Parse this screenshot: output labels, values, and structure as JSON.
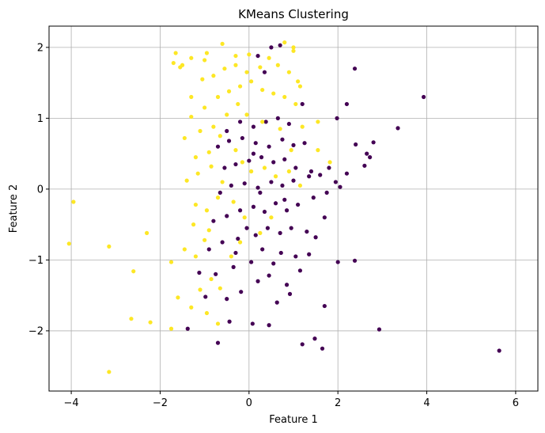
{
  "chart_data": {
    "type": "scatter",
    "title": "KMeans Clustering",
    "xlabel": "Feature 1",
    "ylabel": "Feature 2",
    "xlim": [
      -4.5,
      6.5
    ],
    "ylim": [
      -2.85,
      2.3
    ],
    "xticks": [
      -4,
      -2,
      0,
      2,
      4,
      6
    ],
    "yticks": [
      -2,
      -1,
      0,
      1,
      2
    ],
    "xtick_labels": [
      "−4",
      "−2",
      "0",
      "2",
      "4",
      "6"
    ],
    "ytick_labels": [
      "−2",
      "−1",
      "0",
      "1",
      "2"
    ],
    "grid": true,
    "colors": {
      "cluster_0": "#440154",
      "cluster_1": "#fde725",
      "grid": "#b0b0b0"
    },
    "series": [
      {
        "cluster": 0,
        "points": [
          [
            -0.7,
            -2.17
          ],
          [
            -1.38,
            -1.97
          ],
          [
            -0.44,
            -1.87
          ],
          [
            0.08,
            -1.9
          ],
          [
            0.45,
            -1.92
          ],
          [
            0.63,
            -1.6
          ],
          [
            1.2,
            -2.19
          ],
          [
            1.48,
            -2.11
          ],
          [
            1.65,
            -2.25
          ],
          [
            2.93,
            -1.98
          ],
          [
            5.63,
            -2.28
          ],
          [
            -0.98,
            -1.52
          ],
          [
            -0.5,
            -1.55
          ],
          [
            -0.18,
            -1.45
          ],
          [
            0.2,
            -1.3
          ],
          [
            0.45,
            -1.22
          ],
          [
            0.85,
            -1.35
          ],
          [
            1.15,
            -1.15
          ],
          [
            1.7,
            -1.65
          ],
          [
            0.92,
            -1.48
          ],
          [
            -1.12,
            -1.18
          ],
          [
            -0.75,
            -1.2
          ],
          [
            -0.35,
            -1.1
          ],
          [
            0.05,
            -1.03
          ],
          [
            0.3,
            -0.85
          ],
          [
            0.55,
            -1.05
          ],
          [
            0.72,
            -0.9
          ],
          [
            1.05,
            -0.95
          ],
          [
            1.35,
            -0.92
          ],
          [
            2.0,
            -1.03
          ],
          [
            2.38,
            -1.01
          ],
          [
            -0.9,
            -0.85
          ],
          [
            -0.6,
            -0.75
          ],
          [
            -0.25,
            -0.7
          ],
          [
            0.15,
            -0.65
          ],
          [
            0.42,
            -0.55
          ],
          [
            0.7,
            -0.62
          ],
          [
            0.95,
            -0.55
          ],
          [
            1.3,
            -0.6
          ],
          [
            1.5,
            -0.68
          ],
          [
            1.7,
            -0.4
          ],
          [
            -0.8,
            -0.45
          ],
          [
            -0.5,
            -0.38
          ],
          [
            -0.2,
            -0.3
          ],
          [
            0.1,
            -0.25
          ],
          [
            0.35,
            -0.32
          ],
          [
            0.6,
            -0.2
          ],
          [
            0.85,
            -0.3
          ],
          [
            1.1,
            -0.22
          ],
          [
            1.45,
            -0.12
          ],
          [
            1.75,
            -0.05
          ],
          [
            -0.65,
            -0.05
          ],
          [
            -0.4,
            0.05
          ],
          [
            -0.1,
            0.08
          ],
          [
            0.2,
            0.02
          ],
          [
            0.5,
            0.1
          ],
          [
            0.75,
            0.05
          ],
          [
            1.0,
            0.12
          ],
          [
            1.35,
            0.18
          ],
          [
            1.6,
            0.2
          ],
          [
            1.95,
            0.1
          ],
          [
            2.05,
            0.03
          ],
          [
            -0.55,
            0.3
          ],
          [
            -0.3,
            0.35
          ],
          [
            0.0,
            0.4
          ],
          [
            0.28,
            0.45
          ],
          [
            0.55,
            0.38
          ],
          [
            0.8,
            0.42
          ],
          [
            1.05,
            0.3
          ],
          [
            1.4,
            0.25
          ],
          [
            1.8,
            0.3
          ],
          [
            2.2,
            0.22
          ],
          [
            2.6,
            0.33
          ],
          [
            2.72,
            0.45
          ],
          [
            -0.7,
            0.6
          ],
          [
            -0.45,
            0.68
          ],
          [
            -0.15,
            0.72
          ],
          [
            0.15,
            0.65
          ],
          [
            0.45,
            0.6
          ],
          [
            0.75,
            0.7
          ],
          [
            1.0,
            0.62
          ],
          [
            1.25,
            0.65
          ],
          [
            2.4,
            0.63
          ],
          [
            2.65,
            0.5
          ],
          [
            2.8,
            0.66
          ],
          [
            3.35,
            0.86
          ],
          [
            -0.2,
            0.95
          ],
          [
            0.1,
            0.88
          ],
          [
            0.38,
            0.95
          ],
          [
            0.65,
            1.0
          ],
          [
            0.9,
            0.92
          ],
          [
            1.2,
            1.2
          ],
          [
            1.98,
            1.0
          ],
          [
            2.2,
            1.2
          ],
          [
            3.93,
            1.3
          ],
          [
            2.38,
            1.7
          ],
          [
            0.35,
            1.65
          ],
          [
            0.5,
            2.0
          ],
          [
            0.7,
            2.03
          ],
          [
            0.2,
            1.88
          ],
          [
            -0.5,
            0.82
          ],
          [
            0.25,
            -0.05
          ],
          [
            -0.3,
            -0.9
          ],
          [
            0.8,
            -0.15
          ],
          [
            0.1,
            0.5
          ],
          [
            -0.05,
            -0.55
          ]
        ]
      },
      {
        "cluster": 1,
        "points": [
          [
            -3.15,
            -2.58
          ],
          [
            -2.65,
            -1.83
          ],
          [
            -2.22,
            -1.88
          ],
          [
            -1.75,
            -1.97
          ],
          [
            -2.6,
            -1.16
          ],
          [
            -3.15,
            -0.81
          ],
          [
            -4.05,
            -0.77
          ],
          [
            -3.95,
            -0.18
          ],
          [
            -2.3,
            -0.62
          ],
          [
            -1.75,
            -1.03
          ],
          [
            -1.6,
            -1.53
          ],
          [
            -1.3,
            -1.67
          ],
          [
            -0.95,
            -1.75
          ],
          [
            -1.1,
            -1.42
          ],
          [
            -0.85,
            -1.27
          ],
          [
            -1.2,
            -0.95
          ],
          [
            -1.45,
            -0.85
          ],
          [
            -1.0,
            -0.72
          ],
          [
            -1.25,
            -0.5
          ],
          [
            -0.9,
            -0.58
          ],
          [
            -1.2,
            -0.22
          ],
          [
            -0.95,
            -0.3
          ],
          [
            -0.7,
            -0.12
          ],
          [
            -1.4,
            0.12
          ],
          [
            -1.15,
            0.22
          ],
          [
            -0.85,
            0.32
          ],
          [
            -0.6,
            0.1
          ],
          [
            -0.35,
            -0.18
          ],
          [
            -0.1,
            -0.4
          ],
          [
            -0.3,
            0.55
          ],
          [
            -1.2,
            0.45
          ],
          [
            -0.9,
            0.52
          ],
          [
            -0.65,
            0.75
          ],
          [
            -1.45,
            0.72
          ],
          [
            -1.1,
            0.82
          ],
          [
            -0.8,
            0.88
          ],
          [
            -0.5,
            1.05
          ],
          [
            -0.25,
            1.2
          ],
          [
            -0.05,
            1.05
          ],
          [
            0.3,
            0.95
          ],
          [
            -1.3,
            1.02
          ],
          [
            -1.0,
            1.15
          ],
          [
            -0.7,
            1.3
          ],
          [
            -0.45,
            1.38
          ],
          [
            -0.2,
            1.45
          ],
          [
            0.05,
            1.52
          ],
          [
            0.3,
            1.4
          ],
          [
            0.55,
            1.35
          ],
          [
            0.8,
            1.3
          ],
          [
            1.05,
            1.2
          ],
          [
            -1.3,
            1.3
          ],
          [
            -1.05,
            1.55
          ],
          [
            -0.8,
            1.6
          ],
          [
            -0.55,
            1.7
          ],
          [
            -0.3,
            1.75
          ],
          [
            -0.05,
            1.65
          ],
          [
            0.25,
            1.72
          ],
          [
            0.65,
            1.75
          ],
          [
            0.9,
            1.65
          ],
          [
            1.1,
            1.52
          ],
          [
            -1.65,
            1.92
          ],
          [
            -1.5,
            1.75
          ],
          [
            -1.3,
            1.85
          ],
          [
            -1.0,
            1.82
          ],
          [
            -0.95,
            1.92
          ],
          [
            -0.6,
            2.05
          ],
          [
            -0.3,
            1.88
          ],
          [
            0.0,
            1.9
          ],
          [
            0.45,
            1.85
          ],
          [
            0.8,
            2.07
          ],
          [
            1.0,
            1.95
          ],
          [
            1.15,
            1.45
          ],
          [
            0.35,
            0.3
          ],
          [
            0.6,
            0.18
          ],
          [
            0.9,
            0.25
          ],
          [
            1.15,
            0.05
          ],
          [
            1.55,
            0.55
          ],
          [
            1.82,
            0.38
          ],
          [
            0.5,
            -0.4
          ],
          [
            0.25,
            -0.62
          ],
          [
            0.05,
            0.25
          ],
          [
            -0.15,
            0.38
          ],
          [
            0.7,
            0.85
          ],
          [
            0.95,
            0.55
          ],
          [
            1.2,
            0.88
          ],
          [
            1.55,
            0.95
          ],
          [
            -0.4,
            -0.95
          ],
          [
            -0.65,
            -1.4
          ],
          [
            -0.2,
            -0.75
          ],
          [
            -1.7,
            1.78
          ],
          [
            -1.55,
            1.72
          ],
          [
            -0.7,
            -1.9
          ],
          [
            1.0,
            2.0
          ]
        ]
      }
    ]
  }
}
